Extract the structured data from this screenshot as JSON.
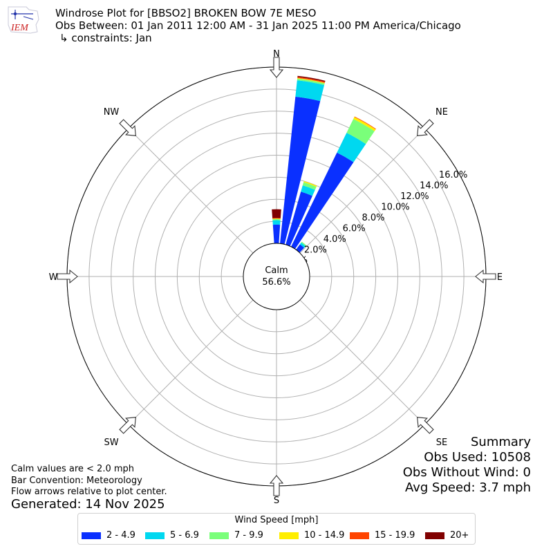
{
  "header": {
    "title": "Windrose Plot for [BBSO2] BROKEN BOW 7E MESO",
    "obs_range": "Obs Between: 01 Jan 2011 12:00 AM - 31 Jan 2025 11:00 PM America/Chicago",
    "constraints": "↳ constraints: Jan"
  },
  "logo": {
    "text": "IEM"
  },
  "notes": {
    "calm_def": "Calm values are < 2.0 mph",
    "bar_convention": "Bar Convention: Meteorology",
    "flow_arrows": "Flow arrows relative to plot center.",
    "generated": "Generated: 14 Nov 2025"
  },
  "summary": {
    "title": "Summary",
    "obs_used": "Obs Used: 10508",
    "obs_without_wind": "Obs Without Wind: 0",
    "avg_speed": "Avg Speed: 3.7 mph"
  },
  "chart_data": {
    "type": "windrose",
    "calm": {
      "label": "Calm",
      "value_text": "56.6%",
      "value": 56.6
    },
    "radial_axis": {
      "unit": "%",
      "range": [
        0,
        16
      ],
      "ticks": [
        "0.0%",
        "2.0%",
        "4.0%",
        "6.0%",
        "8.0%",
        "10.0%",
        "12.0%",
        "14.0%",
        "16.0%"
      ]
    },
    "directions": [
      "N",
      "NE",
      "E",
      "SE",
      "S",
      "SW",
      "W",
      "NW"
    ],
    "legend": {
      "title": "Wind Speed [mph]",
      "bins": [
        {
          "label": "2 - 4.9",
          "color": "#0a30ff"
        },
        {
          "label": "5 - 6.9",
          "color": "#00d8f0"
        },
        {
          "label": "7 - 9.9",
          "color": "#7aff7a"
        },
        {
          "label": "10 - 14.9",
          "color": "#ffee00"
        },
        {
          "label": "15 - 19.9",
          "color": "#ff4400"
        },
        {
          "label": "20+",
          "color": "#800000"
        }
      ]
    },
    "sectors": [
      {
        "direction_deg": 0,
        "values": [
          1.7,
          0.4,
          0.1,
          0.05,
          0.05,
          0.8
        ]
      },
      {
        "direction_deg": 10,
        "values": [
          13.4,
          1.5,
          0.15,
          0.05,
          0.1,
          0.1
        ]
      },
      {
        "direction_deg": 20,
        "values": [
          5.0,
          0.6,
          0.3,
          0.1,
          0.0,
          0.0
        ]
      },
      {
        "direction_deg": 30,
        "values": [
          9.5,
          2.0,
          1.4,
          0.2,
          0.05,
          0.0
        ]
      },
      {
        "direction_deg": 40,
        "values": [
          0.6,
          0.2,
          0.1,
          0.0,
          0.0,
          0.0
        ]
      }
    ],
    "grid": true
  }
}
